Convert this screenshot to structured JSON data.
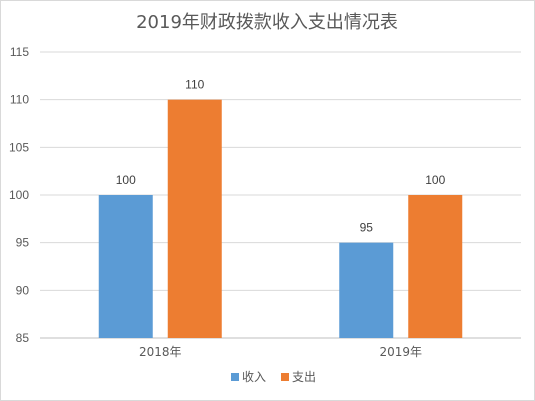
{
  "chart_data": {
    "type": "bar",
    "title": "2019年财政拨款收入支出情况表",
    "categories": [
      "2018年",
      "2019年"
    ],
    "series": [
      {
        "name": "收入",
        "values": [
          100,
          95
        ],
        "color": "#5b9bd5"
      },
      {
        "name": "支出",
        "values": [
          110,
          100
        ],
        "color": "#ed7d31"
      }
    ],
    "ylim": [
      85,
      115
    ],
    "yticks": [
      85,
      90,
      95,
      100,
      105,
      110,
      115
    ],
    "grid": true,
    "legend_position": "bottom"
  }
}
